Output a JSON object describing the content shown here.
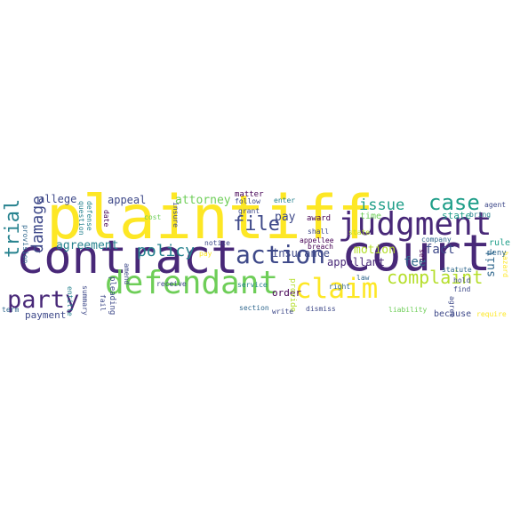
{
  "palette": {
    "yellow": "#fde725",
    "lime": "#b5de2b",
    "green": "#6ece58",
    "teal_green": "#35b779",
    "teal": "#1f9e89",
    "blue_teal": "#26828e",
    "blue": "#31688e",
    "indigo": "#3e4989",
    "purple": "#482878",
    "dark": "#440154"
  },
  "words": [
    {
      "id": "plaintiff",
      "text": "plaintiff",
      "color": "yellow"
    },
    {
      "id": "court",
      "text": "court",
      "color": "purple"
    },
    {
      "id": "contract",
      "text": "contract",
      "color": "purple"
    },
    {
      "id": "judgment",
      "text": "judgment",
      "color": "purple"
    },
    {
      "id": "defendant",
      "text": "defendant",
      "color": "green"
    },
    {
      "id": "claim",
      "text": "claim",
      "color": "yellow"
    },
    {
      "id": "action",
      "text": "action",
      "color": "indigo"
    },
    {
      "id": "party",
      "text": "party",
      "color": "purple"
    },
    {
      "id": "case",
      "text": "case",
      "color": "teal"
    },
    {
      "id": "complaint",
      "text": "complaint",
      "color": "lime"
    },
    {
      "id": "file",
      "text": "file",
      "color": "indigo"
    },
    {
      "id": "trial",
      "text": "trial",
      "color": "blue_teal"
    },
    {
      "id": "policy",
      "text": "policy",
      "color": "blue_teal"
    },
    {
      "id": "damage",
      "text": "damage",
      "color": "indigo"
    },
    {
      "id": "issue",
      "text": "issue",
      "color": "teal"
    },
    {
      "id": "agreement",
      "text": "agreement",
      "color": "blue_teal"
    },
    {
      "id": "motion",
      "text": "motion",
      "color": "lime"
    },
    {
      "id": "insurance",
      "text": "insurance",
      "color": "indigo"
    },
    {
      "id": "fact",
      "text": "fact",
      "color": "indigo"
    },
    {
      "id": "appellant",
      "text": "appellant",
      "color": "purple"
    },
    {
      "id": "fee",
      "text": "fee",
      "color": "blue"
    },
    {
      "id": "allege",
      "text": "allege",
      "color": "indigo"
    },
    {
      "id": "appeal",
      "text": "appeal",
      "color": "indigo"
    },
    {
      "id": "attorney",
      "text": "attorney",
      "color": "green"
    },
    {
      "id": "pay",
      "text": "pay",
      "color": "indigo"
    },
    {
      "id": "suit",
      "text": "suit",
      "color": "blue"
    },
    {
      "id": "payment",
      "text": "payment",
      "color": "indigo"
    },
    {
      "id": "state",
      "text": "state",
      "color": "teal"
    },
    {
      "id": "order",
      "text": "order",
      "color": "dark"
    },
    {
      "id": "because",
      "text": "because",
      "color": "indigo"
    },
    {
      "id": "time",
      "text": "time",
      "color": "green"
    },
    {
      "id": "award",
      "text": "award",
      "color": "dark"
    },
    {
      "id": "rule",
      "text": "rule",
      "color": "teal"
    },
    {
      "id": "deny",
      "text": "deny",
      "color": "blue"
    },
    {
      "id": "find",
      "text": "find",
      "color": "indigo"
    },
    {
      "id": "hold",
      "text": "hold",
      "color": "indigo"
    },
    {
      "id": "statute",
      "text": "statute",
      "color": "blue"
    },
    {
      "id": "law",
      "text": "law",
      "color": "blue"
    },
    {
      "id": "appellee",
      "text": "appellee",
      "color": "dark"
    },
    {
      "id": "section",
      "text": "section",
      "color": "blue"
    },
    {
      "id": "service",
      "text": "service",
      "color": "blue_teal"
    },
    {
      "id": "dismiss",
      "text": "dismiss",
      "color": "indigo"
    },
    {
      "id": "receive",
      "text": "receive",
      "color": "indigo"
    },
    {
      "id": "notice",
      "text": "notice",
      "color": "indigo"
    },
    {
      "id": "amend",
      "text": "amend",
      "color": "indigo"
    },
    {
      "id": "pleading",
      "text": "pleading",
      "color": "indigo"
    },
    {
      "id": "fail",
      "text": "fail",
      "color": "indigo"
    },
    {
      "id": "summary",
      "text": "summary",
      "color": "indigo"
    },
    {
      "id": "entitle",
      "text": "entitle",
      "color": "blue_teal"
    },
    {
      "id": "question",
      "text": "question",
      "color": "blue_teal"
    },
    {
      "id": "defense",
      "text": "defense",
      "color": "blue_teal"
    },
    {
      "id": "provision",
      "text": "provision",
      "color": "blue"
    },
    {
      "id": "term",
      "text": "term",
      "color": "blue"
    },
    {
      "id": "date",
      "text": "date",
      "color": "dark"
    },
    {
      "id": "matter",
      "text": "matter",
      "color": "dark"
    },
    {
      "id": "follow",
      "text": "follow",
      "color": "indigo"
    },
    {
      "id": "enter",
      "text": "enter",
      "color": "blue_teal"
    },
    {
      "id": "grant",
      "text": "grant",
      "color": "indigo"
    },
    {
      "id": "insure",
      "text": "insure",
      "color": "indigo"
    },
    {
      "id": "cost",
      "text": "cost",
      "color": "green"
    },
    {
      "id": "right",
      "text": "right",
      "color": "blue"
    },
    {
      "id": "shall",
      "text": "shall",
      "color": "indigo"
    },
    {
      "id": "provide",
      "text": "provide",
      "color": "lime"
    },
    {
      "id": "breach",
      "text": "breach",
      "color": "dark"
    },
    {
      "id": "company",
      "text": "company",
      "color": "blue"
    },
    {
      "id": "agent",
      "text": "agent",
      "color": "indigo"
    },
    {
      "id": "bring",
      "text": "bring",
      "color": "blue_teal"
    },
    {
      "id": "liability",
      "text": "liability",
      "color": "green"
    },
    {
      "id": "require",
      "text": "require",
      "color": "yellow"
    },
    {
      "id": "agree",
      "text": "agree",
      "color": "indigo"
    },
    {
      "id": "write",
      "text": "write",
      "color": "indigo"
    },
    {
      "id": "set",
      "text": "set",
      "color": "dark"
    },
    {
      "id": "hazard",
      "text": "hazard",
      "color": "yellow"
    },
    {
      "id": "pay2",
      "text": "pay",
      "color": "yellow"
    },
    {
      "id": "state2",
      "text": "state",
      "color": "lime"
    }
  ]
}
